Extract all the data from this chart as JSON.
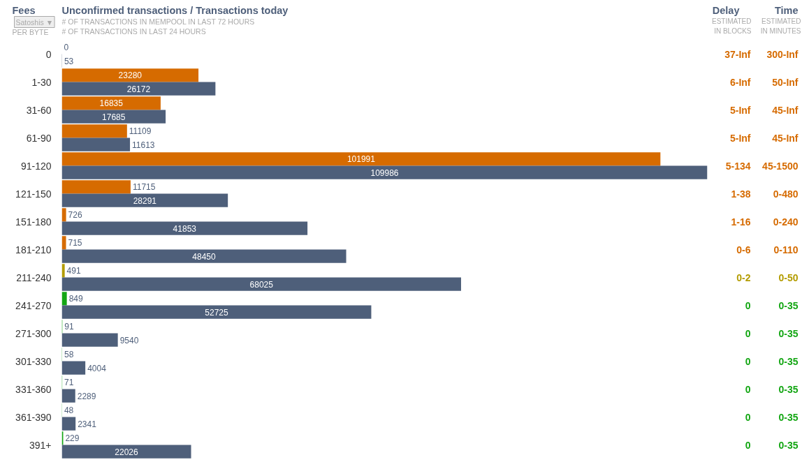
{
  "chart_data": [
    {
      "type": "bar",
      "orientation": "horizontal",
      "title": "Unconfirmed transactions / Transactions today",
      "subtitle": "# OF TRANSACTIONS IN MEMPOOL IN LAST 72 HOURS\n# OF TRANSACTIONS IN LAST 24 HOURS",
      "ylabel": "Fees",
      "annotations": [
        "Satoshis ▼",
        "PER BYTE"
      ],
      "categories": [
        "0",
        "1-30",
        "31-60",
        "61-90",
        "91-120",
        "121-150",
        "151-180",
        "181-210",
        "211-240",
        "241-270",
        "271-300",
        "301-330",
        "331-360",
        "361-390",
        "391+"
      ],
      "series": [
        {
          "colors": [
            "#d66b00",
            "#d66b00",
            "#d66b00",
            "#d66b00",
            "#d66b00",
            "#d66b00",
            "#d66b00",
            "#d66b00",
            "#b39c00",
            "#13a613",
            "#13a613",
            "#13a613",
            "#13a613",
            "#13a613",
            "#13a613"
          ],
          "values": [
            0,
            23280,
            16835,
            11109,
            101991,
            11715,
            726,
            715,
            491,
            849,
            91,
            58,
            71,
            48,
            229
          ]
        },
        {
          "color": "#4e5f7a",
          "values": [
            53,
            26172,
            17685,
            11613,
            109986,
            28291,
            41853,
            48450,
            68025,
            52725,
            9540,
            4004,
            2289,
            2341,
            22026
          ]
        }
      ],
      "xlim": [
        0,
        109986
      ],
      "data_labels": true,
      "tick_labels": "y"
    },
    {
      "type": "other",
      "title": "Delay",
      "subtitle": "ESTIMATED\nIN BLOCKS",
      "annotations": [
        "37-Inf",
        "6-Inf",
        "5-Inf",
        "5-Inf",
        "5-134",
        "1-38",
        "1-16",
        "0-6",
        "0-2",
        "0",
        "0",
        "0",
        "0",
        "0",
        "0"
      ],
      "colors": [
        "#d66b00",
        "#d66b00",
        "#d66b00",
        "#d66b00",
        "#d66b00",
        "#d66b00",
        "#d66b00",
        "#d66b00",
        "#b39c00",
        "#13a613",
        "#13a613",
        "#13a613",
        "#13a613",
        "#13a613",
        "#13a613"
      ]
    },
    {
      "type": "other",
      "title": "Time",
      "subtitle": "ESTIMATED\nIN MINUTES",
      "annotations": [
        "300-Inf",
        "50-Inf",
        "45-Inf",
        "45-Inf",
        "45-1500",
        "0-480",
        "0-240",
        "0-110",
        "0-50",
        "0-35",
        "0-35",
        "0-35",
        "0-35",
        "0-35",
        "0-35"
      ],
      "colors": [
        "#d66b00",
        "#d66b00",
        "#d66b00",
        "#d66b00",
        "#d66b00",
        "#d66b00",
        "#d66b00",
        "#d66b00",
        "#b39c00",
        "#13a613",
        "#13a613",
        "#13a613",
        "#13a613",
        "#13a613",
        "#13a613"
      ]
    }
  ]
}
